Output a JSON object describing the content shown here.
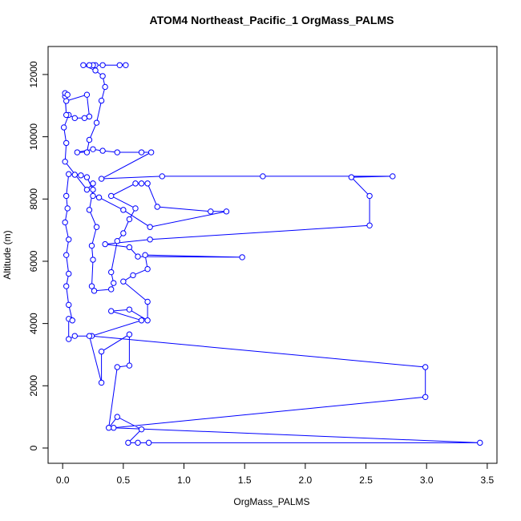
{
  "chart_data": {
    "type": "line",
    "title": "ATOM4 Northeast_Pacific_1 OrgMass_PALMS",
    "x_label": "OrgMass_PALMS",
    "y_label": "Altitude (m)",
    "color": "#0000ff",
    "x": [
      0.52,
      0.47,
      0.33,
      0.27,
      0.25,
      0.22,
      0.17,
      0.27,
      0.33,
      0.35,
      0.32,
      0.28,
      0.22,
      0.2,
      0.12,
      0.25,
      0.33,
      0.45,
      0.65,
      0.73,
      0.32,
      0.82,
      1.65,
      2.72,
      2.38,
      2.53,
      2.53,
      0.72,
      0.35,
      0.55,
      0.62,
      1.48,
      0.68,
      0.7,
      0.58,
      0.5,
      0.7,
      0.7,
      0.55,
      0.4,
      0.65,
      0.24,
      2.99,
      2.99,
      0.42,
      3.44,
      0.71,
      0.62,
      0.54,
      0.65,
      0.45,
      0.38,
      0.45,
      0.55,
      0.55,
      0.32,
      0.32,
      0.22,
      0.1,
      0.05,
      0.05,
      0.08,
      0.05,
      0.03,
      0.05,
      0.03,
      0.05,
      0.02,
      0.04,
      0.03,
      0.05,
      0.1,
      0.15,
      0.2,
      0.25,
      0.22,
      0.28,
      0.24,
      0.25,
      0.24,
      0.26,
      0.4,
      0.42,
      0.4,
      0.45,
      0.5,
      0.55,
      0.6,
      0.4,
      0.6,
      0.65,
      0.7,
      0.78,
      1.22,
      1.35,
      0.72,
      0.5,
      0.3,
      0.25,
      0.25,
      0.2,
      0.02,
      0.03,
      0.01,
      0.05,
      0.1,
      0.18,
      0.22,
      0.2,
      0.03,
      0.02,
      0.03,
      0.02,
      0.04
    ],
    "values": [
      12300,
      12300,
      12300,
      12300,
      12300,
      12300,
      12300,
      12130,
      11950,
      11600,
      11160,
      10450,
      9900,
      9500,
      9500,
      9600,
      9550,
      9500,
      9500,
      9500,
      8650,
      8730,
      8730,
      8730,
      8700,
      8100,
      7150,
      6700,
      6550,
      6450,
      6150,
      6130,
      6200,
      5750,
      5550,
      5350,
      4700,
      4100,
      4450,
      4400,
      4100,
      3600,
      2600,
      1640,
      650,
      170,
      170,
      170,
      170,
      600,
      1000,
      650,
      2600,
      2650,
      3650,
      3100,
      2100,
      3600,
      3600,
      3500,
      4150,
      4100,
      4600,
      5200,
      5600,
      6200,
      6700,
      7250,
      7700,
      8100,
      8800,
      8780,
      8760,
      8700,
      8300,
      7650,
      7100,
      6500,
      6050,
      5200,
      5050,
      5100,
      5300,
      5650,
      6650,
      6900,
      7350,
      7700,
      8100,
      8500,
      8500,
      8500,
      7750,
      7600,
      7600,
      7100,
      7650,
      8050,
      8100,
      8500,
      8300,
      9200,
      9800,
      10300,
      10700,
      10600,
      10600,
      10650,
      11350,
      11150,
      11300,
      10700,
      11400,
      11350
    ],
    "xlim": [
      -0.12,
      3.58
    ],
    "ylim": [
      -490,
      12900
    ],
    "xticks": [
      {
        "value": 0,
        "label": "0.0"
      },
      {
        "value": 0.5,
        "label": "0.5"
      },
      {
        "value": 1,
        "label": "1.0"
      },
      {
        "value": 1.5,
        "label": "1.5"
      },
      {
        "value": 2,
        "label": "2.0"
      },
      {
        "value": 2.5,
        "label": "2.5"
      },
      {
        "value": 3,
        "label": "3.0"
      },
      {
        "value": 3.5,
        "label": "3.5"
      }
    ],
    "yticks": [
      0,
      2000,
      4000,
      6000,
      8000,
      10000,
      12000
    ]
  }
}
